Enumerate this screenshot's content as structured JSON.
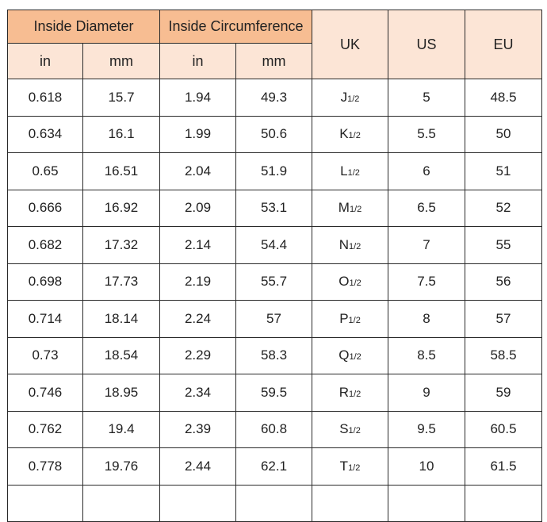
{
  "header": {
    "inside_diameter": "Inside Diameter",
    "inside_circumference": "Inside Circumference",
    "uk": "UK",
    "us": "US",
    "eu": "EU",
    "in": "in",
    "mm": "mm"
  },
  "colors": {
    "header_orange": "#f7bd92",
    "header_peach": "#fce5d6",
    "border": "#2a2a2a"
  },
  "rows": [
    {
      "dia_in": "0.618",
      "dia_mm": "15.7",
      "circ_in": "1.94",
      "circ_mm": "49.3",
      "uk": "J",
      "uk_sub": "1/2",
      "us": "5",
      "eu": "48.5"
    },
    {
      "dia_in": "0.634",
      "dia_mm": "16.1",
      "circ_in": "1.99",
      "circ_mm": "50.6",
      "uk": "K",
      "uk_sub": "1/2",
      "us": "5.5",
      "eu": "50"
    },
    {
      "dia_in": "0.65",
      "dia_mm": "16.51",
      "circ_in": "2.04",
      "circ_mm": "51.9",
      "uk": "L",
      "uk_sub": "1/2",
      "us": "6",
      "eu": "51"
    },
    {
      "dia_in": "0.666",
      "dia_mm": "16.92",
      "circ_in": "2.09",
      "circ_mm": "53.1",
      "uk": "M",
      "uk_sub": "1/2",
      "us": "6.5",
      "eu": "52"
    },
    {
      "dia_in": "0.682",
      "dia_mm": "17.32",
      "circ_in": "2.14",
      "circ_mm": "54.4",
      "uk": "N",
      "uk_sub": "1/2",
      "us": "7",
      "eu": "55"
    },
    {
      "dia_in": "0.698",
      "dia_mm": "17.73",
      "circ_in": "2.19",
      "circ_mm": "55.7",
      "uk": "O",
      "uk_sub": "1/2",
      "us": "7.5",
      "eu": "56"
    },
    {
      "dia_in": "0.714",
      "dia_mm": "18.14",
      "circ_in": "2.24",
      "circ_mm": "57",
      "uk": "P",
      "uk_sub": "1/2",
      "us": "8",
      "eu": "57"
    },
    {
      "dia_in": "0.73",
      "dia_mm": "18.54",
      "circ_in": "2.29",
      "circ_mm": "58.3",
      "uk": "Q",
      "uk_sub": "1/2",
      "us": "8.5",
      "eu": "58.5"
    },
    {
      "dia_in": "0.746",
      "dia_mm": "18.95",
      "circ_in": "2.34",
      "circ_mm": "59.5",
      "uk": "R",
      "uk_sub": "1/2",
      "us": "9",
      "eu": "59"
    },
    {
      "dia_in": "0.762",
      "dia_mm": "19.4",
      "circ_in": "2.39",
      "circ_mm": "60.8",
      "uk": "S",
      "uk_sub": "1/2",
      "us": "9.5",
      "eu": "60.5"
    },
    {
      "dia_in": "0.778",
      "dia_mm": "19.76",
      "circ_in": "2.44",
      "circ_mm": "62.1",
      "uk": "T",
      "uk_sub": "1/2",
      "us": "10",
      "eu": "61.5"
    }
  ]
}
